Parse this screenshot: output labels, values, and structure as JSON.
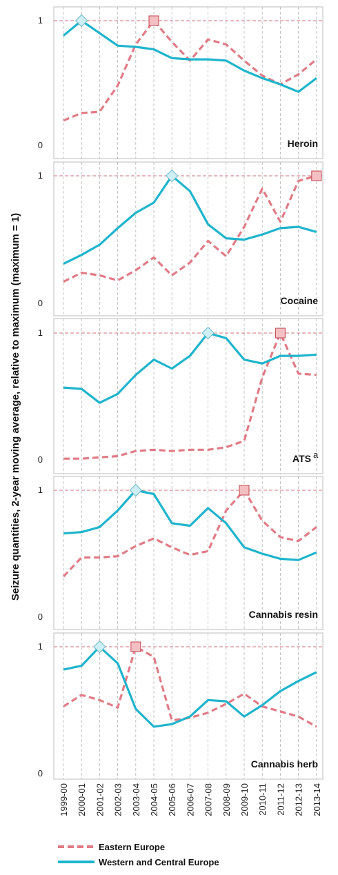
{
  "chart_data": {
    "type": "line",
    "ylabel": "Seizure quantities, 2-year moving average, relative to maximum (maximum = 1)",
    "x": [
      "1999-00",
      "2000-01",
      "2001-02",
      "2002-03",
      "2003-04",
      "2004-05",
      "2005-06",
      "2006-07",
      "2007-08",
      "2008-09",
      "2009-10",
      "2010-11",
      "2011-12",
      "2012-13",
      "2013-14"
    ],
    "yticks": [
      "0",
      "1"
    ],
    "ylim": [
      0,
      1
    ],
    "grid": true,
    "legend": {
      "position": "bottom",
      "entries": [
        {
          "name": "Eastern Europe",
          "color": "#e07b85",
          "style": "dashed"
        },
        {
          "name": "Western and Central Europe",
          "color": "#1eb4cc",
          "style": "solid"
        }
      ]
    },
    "panels": [
      {
        "label": "Heroin",
        "series": [
          {
            "name": "Eastern Europe",
            "values": [
              0.2,
              0.26,
              0.27,
              0.48,
              0.81,
              1.0,
              0.83,
              0.68,
              0.85,
              0.81,
              0.68,
              0.56,
              0.49,
              0.57,
              0.69
            ]
          },
          {
            "name": "Western and Central Europe",
            "values": [
              0.88,
              1.0,
              0.9,
              0.8,
              0.79,
              0.77,
              0.7,
              0.69,
              0.69,
              0.68,
              0.6,
              0.54,
              0.49,
              0.43,
              0.54
            ]
          }
        ]
      },
      {
        "label": "Cocaine",
        "series": [
          {
            "name": "Eastern Europe",
            "values": [
              0.17,
              0.24,
              0.22,
              0.18,
              0.26,
              0.36,
              0.22,
              0.32,
              0.49,
              0.37,
              0.6,
              0.9,
              0.64,
              0.96,
              1.0
            ]
          },
          {
            "name": "Western and Central Europe",
            "values": [
              0.31,
              0.38,
              0.46,
              0.59,
              0.71,
              0.79,
              1.0,
              0.88,
              0.62,
              0.51,
              0.5,
              0.54,
              0.59,
              0.6,
              0.56
            ]
          }
        ]
      },
      {
        "label": "ATS",
        "label_sup": "a",
        "series": [
          {
            "name": "Eastern Europe",
            "values": [
              0.01,
              0.01,
              0.02,
              0.03,
              0.07,
              0.08,
              0.07,
              0.08,
              0.08,
              0.1,
              0.15,
              0.65,
              1.0,
              0.68,
              0.67
            ]
          },
          {
            "name": "Western and Central Europe",
            "values": [
              0.57,
              0.56,
              0.45,
              0.52,
              0.67,
              0.79,
              0.72,
              0.82,
              1.0,
              0.96,
              0.79,
              0.76,
              0.82,
              0.82,
              0.83
            ]
          }
        ]
      },
      {
        "label": "Cannabis resin",
        "series": [
          {
            "name": "Eastern Europe",
            "values": [
              0.32,
              0.47,
              0.47,
              0.48,
              0.56,
              0.62,
              0.55,
              0.49,
              0.52,
              0.84,
              1.0,
              0.76,
              0.63,
              0.6,
              0.71
            ]
          },
          {
            "name": "Western and Central Europe",
            "values": [
              0.66,
              0.67,
              0.71,
              0.84,
              1.0,
              0.97,
              0.74,
              0.72,
              0.86,
              0.74,
              0.55,
              0.5,
              0.46,
              0.45,
              0.51
            ]
          }
        ]
      },
      {
        "label": "Cannabis herb",
        "series": [
          {
            "name": "Eastern Europe",
            "values": [
              0.53,
              0.62,
              0.58,
              0.52,
              1.0,
              0.92,
              0.42,
              0.44,
              0.48,
              0.55,
              0.63,
              0.53,
              0.49,
              0.45,
              0.37
            ]
          },
          {
            "name": "Western and Central Europe",
            "values": [
              0.82,
              0.85,
              1.0,
              0.87,
              0.51,
              0.37,
              0.39,
              0.45,
              0.58,
              0.57,
              0.45,
              0.54,
              0.65,
              0.73,
              0.8
            ]
          }
        ]
      }
    ]
  }
}
